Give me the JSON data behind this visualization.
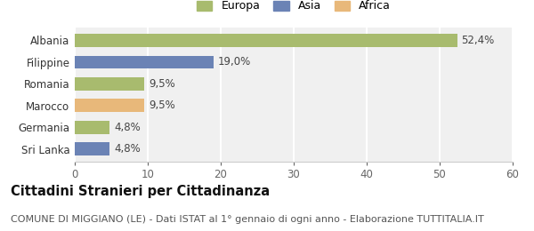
{
  "categories": [
    "Sri Lanka",
    "Germania",
    "Marocco",
    "Romania",
    "Filippine",
    "Albania"
  ],
  "values": [
    4.8,
    4.8,
    9.5,
    9.5,
    19.0,
    52.4
  ],
  "labels": [
    "4,8%",
    "4,8%",
    "9,5%",
    "9,5%",
    "19,0%",
    "52,4%"
  ],
  "bar_colors": [
    "#6b83b5",
    "#a8bb6e",
    "#e8b87a",
    "#a8bb6e",
    "#6b83b5",
    "#a8bb6e"
  ],
  "xlim": [
    0,
    60
  ],
  "xticks": [
    0,
    10,
    20,
    30,
    40,
    50,
    60
  ],
  "title": "Cittadini Stranieri per Cittadinanza",
  "subtitle": "COMUNE DI MIGGIANO (LE) - Dati ISTAT al 1° gennaio di ogni anno - Elaborazione TUTTITALIA.IT",
  "legend_labels": [
    "Europa",
    "Asia",
    "Africa"
  ],
  "legend_colors": [
    "#a8bb6e",
    "#6b83b5",
    "#e8b87a"
  ],
  "background_color": "#ffffff",
  "bar_bg_color": "#f0f0f0",
  "grid_color": "#ffffff",
  "label_fontsize": 8.5,
  "title_fontsize": 10.5,
  "subtitle_fontsize": 8
}
